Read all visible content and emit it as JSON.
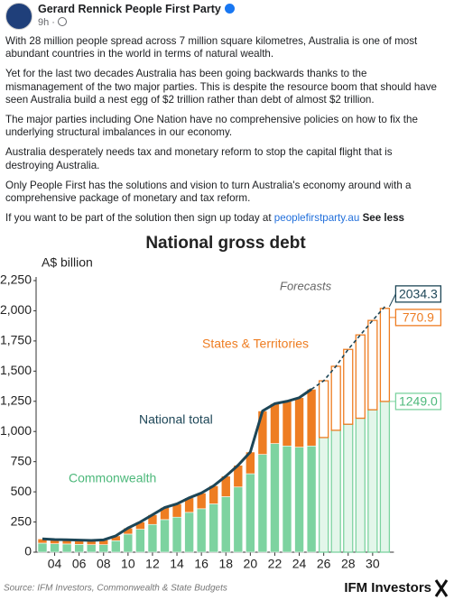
{
  "post": {
    "author": "Gerard Rennick People First Party",
    "time": "9h",
    "paragraphs": [
      "With 28 million people spread across 7 million square kilometres, Australia is one of most abundant countries in the world in terms of natural wealth.",
      "Yet for the last two decades Australia has been going backwards thanks to the mismanagement of the two major parties. This is despite the resource boom that should have seen Australia build a nest egg of $2 trillion rather than debt of almost $2 trillion.",
      "The major parties including One Nation have no comprehensive policies on how to fix the underlying structural imbalances in our economy.",
      "Australia desperately needs tax and monetary reform to stop the capital flight that is destroying Australia.",
      "Only People First has the solutions and vision to turn Australia's economy around with a comprehensive package of monetary and tax reform."
    ],
    "closing": "If you want to be part of the solution then sign up today at",
    "link": "peoplefirstparty.au",
    "see_less": "See less"
  },
  "chart_data": {
    "type": "bar",
    "title": "National gross debt",
    "y_label": "A$ billion",
    "source": "Source: IFM Investors, Commonwealth & State Budgets",
    "brand": "IFM Investors",
    "annotations": {
      "forecast": "Forecasts",
      "states": "States & Territories",
      "total": "National total",
      "commonwealth": "Commonwealth"
    },
    "categories": [
      null,
      "04",
      null,
      "06",
      null,
      "08",
      null,
      "10",
      null,
      "12",
      null,
      "14",
      null,
      "16",
      null,
      "18",
      null,
      "20",
      null,
      "22",
      null,
      "24",
      null,
      "26",
      null,
      "28",
      null,
      "30",
      null
    ],
    "forecast": [
      false,
      false,
      false,
      false,
      false,
      false,
      false,
      false,
      false,
      false,
      false,
      false,
      false,
      false,
      false,
      false,
      false,
      false,
      false,
      false,
      false,
      false,
      false,
      true,
      true,
      true,
      true,
      true,
      true
    ],
    "series": [
      {
        "name": "Commonwealth",
        "color": "#7dd3a0",
        "values": [
          75,
          70,
          68,
          65,
          62,
          62,
          95,
          150,
          190,
          230,
          270,
          290,
          330,
          360,
          400,
          460,
          540,
          650,
          810,
          900,
          880,
          870,
          880,
          950,
          1010,
          1060,
          1110,
          1180,
          1249.0
        ],
        "value_labels": [
          null,
          null,
          null,
          null,
          null,
          null,
          null,
          null,
          null,
          null,
          null,
          null,
          null,
          null,
          null,
          null,
          null,
          null,
          null,
          null,
          null,
          null,
          null,
          null,
          null,
          null,
          null,
          null,
          "1249.0"
        ]
      },
      {
        "name": "States & Territories",
        "color": "#ee7d22",
        "values": [
          35,
          35,
          35,
          35,
          35,
          40,
          40,
          50,
          60,
          80,
          100,
          110,
          120,
          130,
          150,
          170,
          180,
          180,
          360,
          330,
          370,
          410,
          470,
          470,
          530,
          620,
          690,
          740,
          770.9
        ],
        "value_labels": [
          null,
          null,
          null,
          null,
          null,
          null,
          null,
          null,
          null,
          null,
          null,
          null,
          null,
          null,
          null,
          null,
          null,
          null,
          null,
          null,
          null,
          null,
          null,
          null,
          null,
          null,
          null,
          null,
          "770.9"
        ]
      },
      {
        "name": "National total",
        "type": "line",
        "color": "#1d4657",
        "values": [
          110,
          105,
          103,
          100,
          97,
          102,
          135,
          200,
          250,
          310,
          370,
          400,
          450,
          490,
          550,
          630,
          720,
          830,
          1170,
          1230,
          1250,
          1280,
          1350,
          1420,
          1540,
          1680,
          1800,
          1920,
          2034.3
        ],
        "value_labels": [
          null,
          null,
          null,
          null,
          null,
          null,
          null,
          null,
          null,
          null,
          null,
          null,
          null,
          null,
          null,
          null,
          null,
          null,
          null,
          null,
          null,
          null,
          null,
          null,
          null,
          null,
          null,
          null,
          "2034.3"
        ]
      }
    ],
    "ylim": [
      0,
      2250
    ],
    "yticks": [
      0,
      {
        "value": 250,
        "label": "250"
      },
      {
        "value": 500,
        "label": "500"
      },
      {
        "value": 750,
        "label": "750"
      },
      {
        "value": 1000,
        "label": "1,000"
      },
      {
        "value": 1250,
        "label": "1,250"
      },
      {
        "value": 1500,
        "label": "1,500"
      },
      {
        "value": 1750,
        "label": "1,750"
      },
      {
        "value": 2000,
        "label": "2,000"
      },
      {
        "value": 2250,
        "label": "2,250"
      }
    ]
  }
}
